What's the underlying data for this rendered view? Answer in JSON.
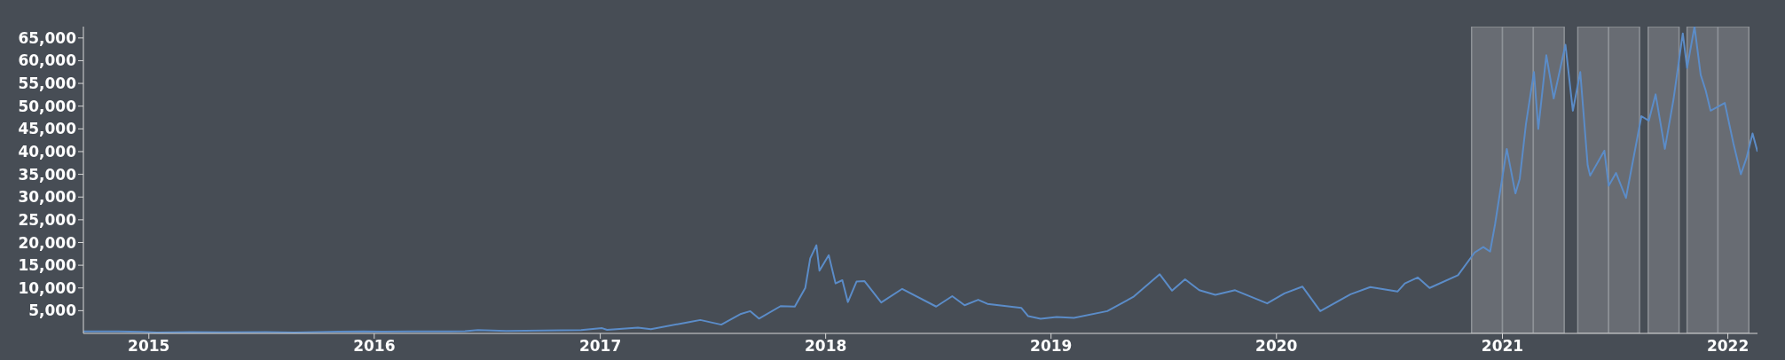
{
  "chart_data": {
    "type": "line",
    "x": [
      "2014-09-17",
      "2014-11-12",
      "2014-12-20",
      "2015-01-14",
      "2015-03-10",
      "2015-05-01",
      "2015-07-10",
      "2015-08-25",
      "2015-11-04",
      "2015-12-15",
      "2016-01-15",
      "2016-03-01",
      "2016-05-27",
      "2016-06-17",
      "2016-08-02",
      "2016-10-01",
      "2016-12-01",
      "2017-01-04",
      "2017-01-12",
      "2017-03-03",
      "2017-03-24",
      "2017-05-25",
      "2017-06-12",
      "2017-07-16",
      "2017-08-17",
      "2017-09-01",
      "2017-09-15",
      "2017-10-20",
      "2017-11-12",
      "2017-11-29",
      "2017-12-07",
      "2017-12-17",
      "2017-12-22",
      "2018-01-06",
      "2018-01-17",
      "2018-01-28",
      "2018-02-06",
      "2018-02-20",
      "2018-03-05",
      "2018-04-01",
      "2018-05-05",
      "2018-06-29",
      "2018-07-25",
      "2018-08-14",
      "2018-09-05",
      "2018-09-20",
      "2018-11-14",
      "2018-11-25",
      "2018-12-15",
      "2019-01-10",
      "2019-02-07",
      "2019-04-02",
      "2019-05-14",
      "2019-06-26",
      "2019-07-16",
      "2019-08-06",
      "2019-08-29",
      "2019-09-24",
      "2019-10-26",
      "2019-12-17",
      "2020-01-14",
      "2020-02-12",
      "2020-03-12",
      "2020-04-30",
      "2020-06-01",
      "2020-07-15",
      "2020-07-27",
      "2020-08-17",
      "2020-09-05",
      "2020-10-21",
      "2020-11-17",
      "2020-12-01",
      "2020-12-12",
      "2020-12-20",
      "2021-01-08",
      "2021-01-22",
      "2021-01-29",
      "2021-02-08",
      "2021-02-21",
      "2021-02-28",
      "2021-03-13",
      "2021-03-25",
      "2021-04-13",
      "2021-04-25",
      "2021-05-07",
      "2021-05-19",
      "2021-05-23",
      "2021-06-15",
      "2021-06-22",
      "2021-07-04",
      "2021-07-20",
      "2021-08-14",
      "2021-08-26",
      "2021-09-06",
      "2021-09-21",
      "2021-10-05",
      "2021-10-20",
      "2021-10-27",
      "2021-11-08",
      "2021-11-18",
      "2021-11-26",
      "2021-12-04",
      "2021-12-27",
      "2022-01-10",
      "2022-01-22",
      "2022-01-31",
      "2022-02-10",
      "2022-02-18"
    ],
    "series": [
      {
        "color": "#5b8cc8",
        "values": [
          457,
          420,
          320,
          180,
          290,
          235,
          285,
          210,
          400,
          460,
          370,
          430,
          470,
          750,
          550,
          610,
          750,
          1150,
          780,
          1280,
          940,
          2500,
          2950,
          1930,
          4300,
          4900,
          3250,
          6000,
          5900,
          10000,
          16500,
          19400,
          13800,
          17200,
          11000,
          11700,
          6900,
          11400,
          11500,
          6800,
          9800,
          5900,
          8200,
          6200,
          7400,
          6500,
          5600,
          3800,
          3200,
          3600,
          3400,
          4900,
          8000,
          13000,
          9400,
          11900,
          9500,
          8500,
          9500,
          6600,
          8800,
          10300,
          4900,
          8600,
          10200,
          9200,
          11000,
          12300,
          10000,
          12800,
          17800,
          19000,
          18000,
          24000,
          40600,
          30800,
          34000,
          46000,
          57500,
          45000,
          61200,
          51700,
          63500,
          49000,
          57500,
          37000,
          34700,
          40200,
          32500,
          35300,
          29800,
          47800,
          46800,
          52600,
          40600,
          51500,
          66000,
          58400,
          67500,
          56900,
          53500,
          49000,
          50700,
          41800,
          35000,
          38500,
          44000,
          40000
        ]
      }
    ],
    "xlim": [
      "2014-09-17",
      "2022-02-18"
    ],
    "xticks": [
      "2015",
      "2016",
      "2017",
      "2018",
      "2019",
      "2020",
      "2021",
      "2022"
    ],
    "ylim": [
      0,
      67500
    ],
    "yticks": [
      {
        "value": 5000,
        "label": "5,000"
      },
      {
        "value": 10000,
        "label": "10,000"
      },
      {
        "value": 15000,
        "label": "15,000"
      },
      {
        "value": 20000,
        "label": "20,000"
      },
      {
        "value": 25000,
        "label": "25,000"
      },
      {
        "value": 30000,
        "label": "30,000"
      },
      {
        "value": 35000,
        "label": "35,000"
      },
      {
        "value": 40000,
        "label": "40,000"
      },
      {
        "value": 45000,
        "label": "45,000"
      },
      {
        "value": 50000,
        "label": "50,000"
      },
      {
        "value": 55000,
        "label": "55,000"
      },
      {
        "value": 60000,
        "label": "60,000"
      },
      {
        "value": 65000,
        "label": "65,000"
      }
    ],
    "bands": [
      {
        "axis": "x",
        "from": "2020-11-12",
        "to": "2021-01-01",
        "color": "#686c73"
      },
      {
        "axis": "x",
        "from": "2021-01-01",
        "to": "2021-02-20",
        "color": "#686c73"
      },
      {
        "axis": "x",
        "from": "2021-02-20",
        "to": "2021-04-11",
        "color": "#686c73"
      },
      {
        "axis": "x",
        "from": "2021-05-03",
        "to": "2021-06-22",
        "color": "#686c73"
      },
      {
        "axis": "x",
        "from": "2021-06-22",
        "to": "2021-08-11",
        "color": "#686c73"
      },
      {
        "axis": "x",
        "from": "2021-08-25",
        "to": "2021-10-14",
        "color": "#686c73"
      },
      {
        "axis": "x",
        "from": "2021-10-27",
        "to": "2021-12-16",
        "color": "#686c73"
      },
      {
        "axis": "x",
        "from": "2021-12-16",
        "to": "2022-02-04",
        "color": "#686c73"
      }
    ],
    "grid": false,
    "legend": false,
    "marker": "none",
    "line_style": "solid"
  }
}
